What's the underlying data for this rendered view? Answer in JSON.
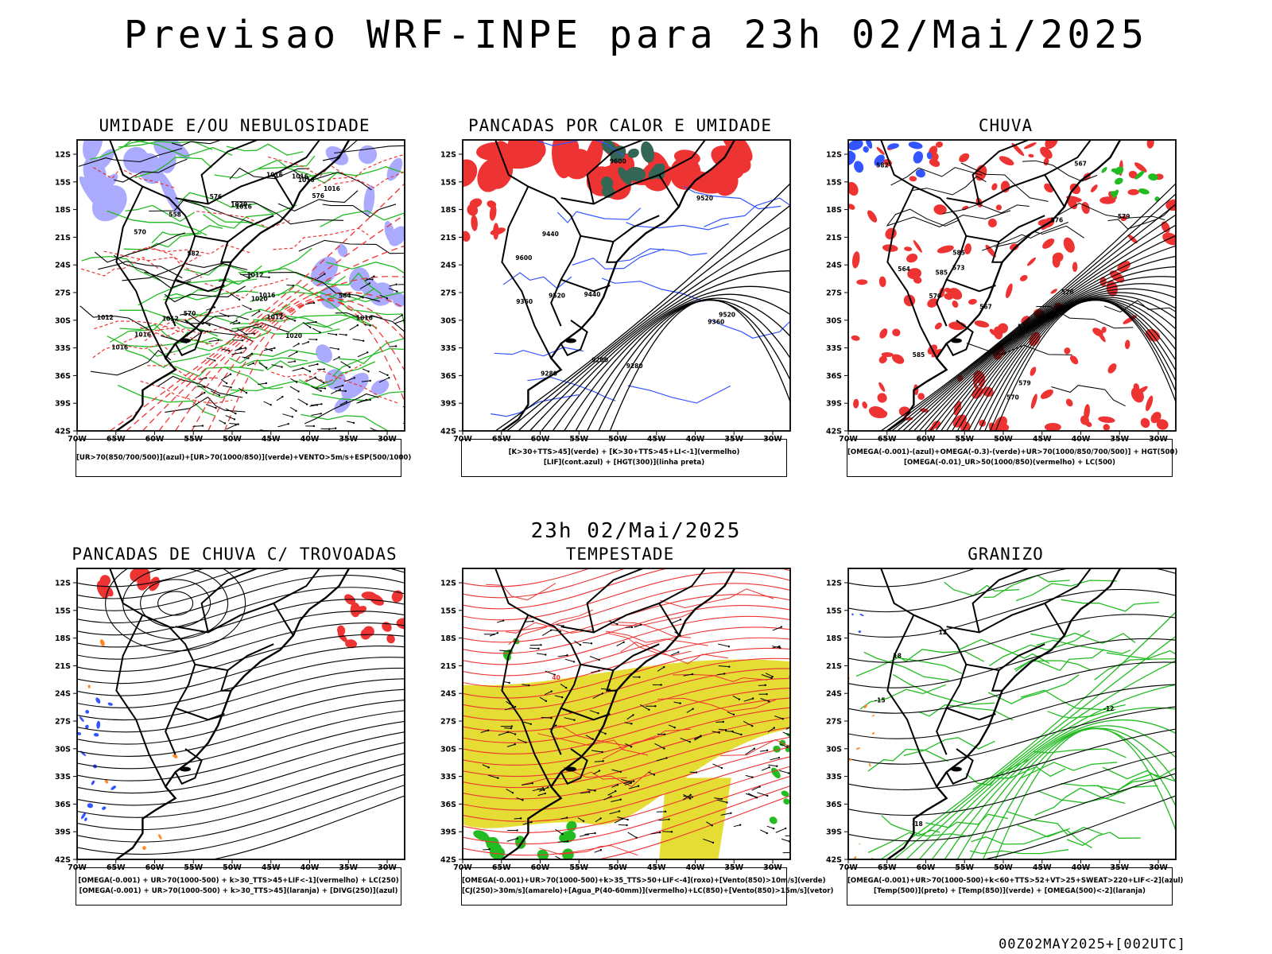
{
  "header": {
    "title": "Previsao WRF-INPE  para 23h 02/Mai/2025",
    "mid_title": "23h 02/Mai/2025",
    "footer": "00Z02MAY2025+[002UTC]"
  },
  "axes": {
    "lat_ticks": [
      "12S",
      "15S",
      "18S",
      "21S",
      "24S",
      "27S",
      "30S",
      "33S",
      "36S",
      "39S",
      "42S"
    ],
    "lon_ticks": [
      "70W",
      "65W",
      "60W",
      "55W",
      "50W",
      "45W",
      "40W",
      "35W",
      "30W"
    ]
  },
  "colors": {
    "blue": "#3355ff",
    "green": "#22bb22",
    "red": "#ee3333",
    "yellow": "#e5dd33",
    "orange": "#ff8822",
    "lavender": "#aaaaff",
    "teal": "#336655"
  },
  "panels": [
    {
      "id": "umidade",
      "title": "UMIDADE E/OU NEBULOSIDADE",
      "legend": [
        "[UR>70(850/700/500)](azul)+[UR>70(1000/850)](verde)+VENTO>5m/s+ESP(500/1000)"
      ],
      "contour_labels": [
        "1012",
        "1012",
        "1016",
        "1012",
        "1016",
        "1016",
        "1012",
        "1016",
        "1020",
        "1016",
        "1020",
        "1016",
        "1016",
        "1020",
        "1016",
        "1016",
        "576",
        "570",
        "564",
        "582",
        "558",
        "570",
        "576"
      ],
      "style": "umidade"
    },
    {
      "id": "pancadas-calor",
      "title": "PANCADAS POR CALOR E UMIDADE",
      "legend": [
        "[K>30+TTS>45](verde) + [K>30+TTS>45+LI<-1](vermelho)",
        "[LIF](cont.azul) + [HGT(300)](linha preta)"
      ],
      "contour_labels": [
        "9520",
        "9600",
        "9440",
        "9520",
        "9360",
        "9600",
        "9520",
        "9440",
        "9280",
        "9360",
        "9200",
        "9280"
      ],
      "style": "calor"
    },
    {
      "id": "chuva",
      "title": "CHUVA",
      "legend": [
        "[OMEGA(-0.001)-(azul)+OMEGA(-0.3)-(verde)+UR>70(1000/850/700/500)] + HGT(500)",
        "[OMEGA(-0.01)_UR>50(1000/850)(vermelho) + LC(500)"
      ],
      "contour_labels": [
        "585",
        "585",
        "582",
        "585",
        "579",
        "576",
        "573",
        "570",
        "567",
        "564",
        "573",
        "570",
        "567",
        "579",
        "576"
      ],
      "style": "chuva"
    },
    {
      "id": "trovoadas",
      "title": "PANCADAS DE CHUVA C/ TROVOADAS",
      "legend": [
        "[OMEGA(-0.001) + UR>70(1000-500) + k>30_TTS>45+LIF<-1](vermelho) + LC(250)",
        "[OMEGA(-0.001) + UR>70(1000-500) + k>30_TTS>45](laranja) + [DIVG(250)](azul)"
      ],
      "contour_labels": [],
      "style": "trovoadas"
    },
    {
      "id": "tempestade",
      "title": "TEMPESTADE",
      "legend": [
        "[OMEGA(-0.001)+UR>70(1000-500)+k>35_TTS>50+LIF<-4](roxo)+[Vento(850)>10m/s](verde)",
        "[CJ(250)>30m/s](amarelo)+[Agua_P(40-60mm)](vermelho)+LC(850)+[Vento(850)>15m/s](vetor)"
      ],
      "contour_labels": [
        "40"
      ],
      "style": "tempestade"
    },
    {
      "id": "granizo",
      "title": "GRANIZO",
      "legend": [
        "[OMEGA(-0.001)+UR>70(1000-500)+k<60+TTS>52+VT>25+SWEAT>220+LIF<-2](azul)",
        "[Temp(500)](preto) + [Temp(850)](verde) + [OMEGA(500)<-2](laranja)"
      ],
      "contour_labels": [
        "12",
        "-12",
        "-15",
        "18",
        "-18"
      ],
      "style": "granizo"
    }
  ]
}
